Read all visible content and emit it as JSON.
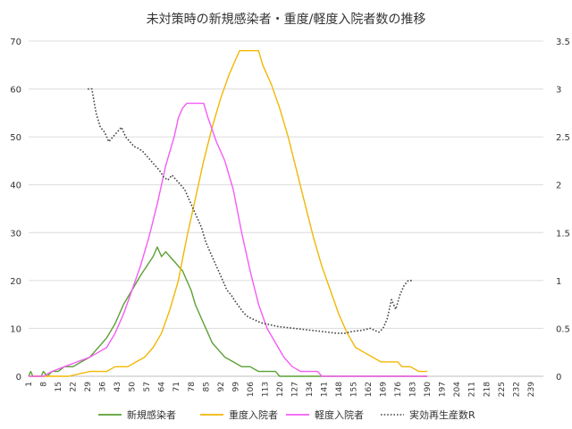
{
  "chart_data": {
    "type": "line",
    "title": "未対策時の新規感染者・重度/軽度入院者数の推移",
    "x_start": 1,
    "x_end": 245,
    "x_tick_labels": [
      "1",
      "8",
      "15",
      "22",
      "29",
      "36",
      "43",
      "50",
      "57",
      "64",
      "71",
      "78",
      "85",
      "92",
      "99",
      "106",
      "113",
      "120",
      "127",
      "134",
      "141",
      "148",
      "155",
      "162",
      "169",
      "176",
      "183",
      "190",
      "197",
      "204",
      "211",
      "218",
      "225",
      "232",
      "239"
    ],
    "y_left": {
      "min": 0,
      "max": 70,
      "ticks": [
        "0",
        "10",
        "20",
        "30",
        "40",
        "50",
        "60",
        "70"
      ]
    },
    "y_right": {
      "min": 0,
      "max": 3.5,
      "ticks": [
        "0",
        "0.5",
        "1",
        "1.5",
        "2",
        "2.5",
        "3",
        "3.5"
      ]
    },
    "grid": "horizontal",
    "legend_position": "bottom",
    "series": [
      {
        "name": "新規感染者",
        "color": "#5aa032",
        "axis": "left",
        "style": "solid",
        "points": [
          [
            1,
            0
          ],
          [
            2,
            1
          ],
          [
            3,
            0
          ],
          [
            7,
            0
          ],
          [
            8,
            1
          ],
          [
            10,
            0
          ],
          [
            12,
            1
          ],
          [
            15,
            1
          ],
          [
            18,
            2
          ],
          [
            22,
            2
          ],
          [
            26,
            3
          ],
          [
            30,
            4
          ],
          [
            34,
            6
          ],
          [
            38,
            8
          ],
          [
            42,
            11
          ],
          [
            46,
            15
          ],
          [
            50,
            18
          ],
          [
            54,
            21
          ],
          [
            57,
            23
          ],
          [
            60,
            25
          ],
          [
            62,
            27
          ],
          [
            64,
            25
          ],
          [
            66,
            26
          ],
          [
            68,
            25
          ],
          [
            70,
            24
          ],
          [
            72,
            23
          ],
          [
            74,
            22
          ],
          [
            76,
            20
          ],
          [
            78,
            18
          ],
          [
            80,
            15
          ],
          [
            82,
            13
          ],
          [
            84,
            11
          ],
          [
            86,
            9
          ],
          [
            88,
            7
          ],
          [
            90,
            6
          ],
          [
            94,
            4
          ],
          [
            98,
            3
          ],
          [
            102,
            2
          ],
          [
            106,
            2
          ],
          [
            110,
            1
          ],
          [
            114,
            1
          ],
          [
            118,
            1
          ],
          [
            120,
            0
          ],
          [
            190,
            0
          ]
        ]
      },
      {
        "name": "重度入院者",
        "color": "#f2b705",
        "axis": "left",
        "style": "solid",
        "points": [
          [
            1,
            0
          ],
          [
            10,
            0
          ],
          [
            20,
            0
          ],
          [
            30,
            1
          ],
          [
            38,
            1
          ],
          [
            42,
            2
          ],
          [
            48,
            2
          ],
          [
            52,
            3
          ],
          [
            56,
            4
          ],
          [
            60,
            6
          ],
          [
            64,
            9
          ],
          [
            68,
            14
          ],
          [
            72,
            20
          ],
          [
            76,
            29
          ],
          [
            80,
            37
          ],
          [
            84,
            45
          ],
          [
            88,
            52
          ],
          [
            92,
            58
          ],
          [
            96,
            63
          ],
          [
            99,
            66
          ],
          [
            101,
            68
          ],
          [
            104,
            68
          ],
          [
            108,
            68
          ],
          [
            110,
            68
          ],
          [
            112,
            65
          ],
          [
            116,
            61
          ],
          [
            120,
            56
          ],
          [
            124,
            50
          ],
          [
            128,
            43
          ],
          [
            132,
            36
          ],
          [
            136,
            29
          ],
          [
            140,
            23
          ],
          [
            144,
            18
          ],
          [
            148,
            13
          ],
          [
            152,
            9
          ],
          [
            156,
            6
          ],
          [
            160,
            5
          ],
          [
            164,
            4
          ],
          [
            168,
            3
          ],
          [
            172,
            3
          ],
          [
            176,
            3
          ],
          [
            178,
            2
          ],
          [
            182,
            2
          ],
          [
            186,
            1
          ],
          [
            190,
            1
          ]
        ]
      },
      {
        "name": "軽度入院者",
        "color": "#f45cf4",
        "axis": "left",
        "style": "solid",
        "points": [
          [
            1,
            0
          ],
          [
            8,
            0
          ],
          [
            12,
            1
          ],
          [
            18,
            2
          ],
          [
            24,
            3
          ],
          [
            30,
            4
          ],
          [
            34,
            5
          ],
          [
            38,
            6
          ],
          [
            42,
            9
          ],
          [
            46,
            13
          ],
          [
            50,
            18
          ],
          [
            54,
            23
          ],
          [
            58,
            29
          ],
          [
            62,
            36
          ],
          [
            66,
            44
          ],
          [
            70,
            50
          ],
          [
            72,
            54
          ],
          [
            74,
            56
          ],
          [
            76,
            57
          ],
          [
            80,
            57
          ],
          [
            84,
            57
          ],
          [
            86,
            54
          ],
          [
            90,
            49
          ],
          [
            94,
            45
          ],
          [
            98,
            39
          ],
          [
            102,
            30
          ],
          [
            106,
            22
          ],
          [
            110,
            15
          ],
          [
            114,
            10
          ],
          [
            118,
            7
          ],
          [
            122,
            4
          ],
          [
            126,
            2
          ],
          [
            130,
            1
          ],
          [
            134,
            1
          ],
          [
            138,
            1
          ],
          [
            140,
            0
          ],
          [
            190,
            0
          ]
        ]
      },
      {
        "name": "実効再生産数R",
        "color": "#444444",
        "axis": "right",
        "style": "dotted",
        "points": [
          [
            29,
            3.0
          ],
          [
            31,
            3.0
          ],
          [
            33,
            2.75
          ],
          [
            35,
            2.6
          ],
          [
            37,
            2.55
          ],
          [
            39,
            2.45
          ],
          [
            41,
            2.5
          ],
          [
            43,
            2.55
          ],
          [
            45,
            2.6
          ],
          [
            47,
            2.5
          ],
          [
            49,
            2.45
          ],
          [
            51,
            2.4
          ],
          [
            53,
            2.38
          ],
          [
            55,
            2.35
          ],
          [
            57,
            2.3
          ],
          [
            59,
            2.25
          ],
          [
            61,
            2.2
          ],
          [
            63,
            2.15
          ],
          [
            65,
            2.08
          ],
          [
            67,
            2.05
          ],
          [
            69,
            2.1
          ],
          [
            71,
            2.05
          ],
          [
            73,
            2.0
          ],
          [
            75,
            1.95
          ],
          [
            77,
            1.85
          ],
          [
            79,
            1.75
          ],
          [
            81,
            1.65
          ],
          [
            83,
            1.55
          ],
          [
            85,
            1.4
          ],
          [
            87,
            1.3
          ],
          [
            89,
            1.2
          ],
          [
            91,
            1.1
          ],
          [
            93,
            1.0
          ],
          [
            95,
            0.9
          ],
          [
            97,
            0.85
          ],
          [
            99,
            0.78
          ],
          [
            101,
            0.72
          ],
          [
            103,
            0.66
          ],
          [
            105,
            0.62
          ],
          [
            107,
            0.6
          ],
          [
            109,
            0.58
          ],
          [
            111,
            0.56
          ],
          [
            113,
            0.55
          ],
          [
            115,
            0.54
          ],
          [
            117,
            0.53
          ],
          [
            119,
            0.52
          ],
          [
            123,
            0.51
          ],
          [
            127,
            0.5
          ],
          [
            131,
            0.49
          ],
          [
            135,
            0.48
          ],
          [
            139,
            0.47
          ],
          [
            143,
            0.46
          ],
          [
            147,
            0.45
          ],
          [
            151,
            0.45
          ],
          [
            155,
            0.47
          ],
          [
            159,
            0.48
          ],
          [
            163,
            0.5
          ],
          [
            167,
            0.46
          ],
          [
            169,
            0.5
          ],
          [
            171,
            0.6
          ],
          [
            173,
            0.8
          ],
          [
            175,
            0.7
          ],
          [
            177,
            0.85
          ],
          [
            179,
            0.95
          ],
          [
            181,
            1.0
          ],
          [
            183,
            1.0
          ]
        ]
      }
    ]
  }
}
